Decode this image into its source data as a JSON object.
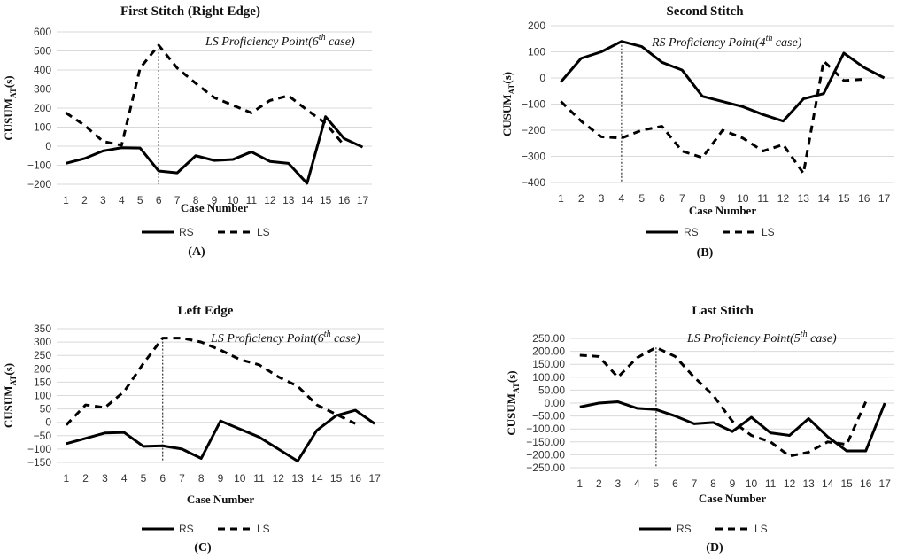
{
  "figure": {
    "panels_label": "Figure"
  },
  "chart_data": [
    {
      "type": "line",
      "title": "First Stitch (Right Edge)",
      "panel_label": "(A)",
      "xlabel": "Case Number",
      "ylabel_main": "CUSUM",
      "ylabel_sub": "AT",
      "ylabel_end": "(s)",
      "ylim": [
        -200,
        600
      ],
      "yticks": [
        -200,
        -100,
        0,
        100,
        200,
        300,
        400,
        500,
        600
      ],
      "ytick_labels": [
        "−200",
        "−100",
        "0",
        "100",
        "200",
        "300",
        "400",
        "500",
        "600"
      ],
      "categories": [
        "1",
        "2",
        "3",
        "4",
        "5",
        "6",
        "7",
        "8",
        "9",
        "10",
        "11",
        "12",
        "13",
        "14",
        "15",
        "16",
        "17"
      ],
      "series": [
        {
          "name": "RS",
          "values": [
            -90,
            -65,
            -25,
            -8,
            -10,
            -130,
            -140,
            -50,
            -75,
            -70,
            -30,
            -80,
            -90,
            -195,
            155,
            40,
            -5
          ]
        },
        {
          "name": "LS",
          "values": [
            175,
            110,
            25,
            5,
            410,
            530,
            410,
            330,
            255,
            215,
            175,
            240,
            265,
            190,
            120,
            5,
            null
          ]
        }
      ],
      "annotation": {
        "text": "LS Proficiency Point(6",
        "sup": "th",
        "tail": " case)",
        "x_case": 6
      }
    },
    {
      "type": "line",
      "title": "Second Stitch",
      "panel_label": "(B)",
      "xlabel": "Case Number",
      "ylabel_main": "CUSUM",
      "ylabel_sub": "AT",
      "ylabel_end": "(s)",
      "ylim": [
        -400,
        200
      ],
      "yticks": [
        -400,
        -300,
        -200,
        -100,
        0,
        100,
        200
      ],
      "ytick_labels": [
        "−400",
        "−300",
        "−200",
        "−100",
        "0",
        "100",
        "200"
      ],
      "categories": [
        "1",
        "2",
        "3",
        "4",
        "5",
        "6",
        "7",
        "8",
        "9",
        "10",
        "11",
        "12",
        "13",
        "14",
        "15",
        "16",
        "17"
      ],
      "series": [
        {
          "name": "RS",
          "values": [
            -15,
            75,
            100,
            140,
            120,
            60,
            30,
            -70,
            -90,
            -110,
            -140,
            -165,
            -80,
            -60,
            95,
            40,
            0
          ]
        },
        {
          "name": "LS",
          "values": [
            -90,
            -165,
            -225,
            -230,
            -200,
            -185,
            -280,
            -305,
            -200,
            -230,
            -280,
            -255,
            -365,
            65,
            -10,
            -5,
            null
          ]
        }
      ],
      "annotation": {
        "text": "RS Proficiency Point(4",
        "sup": "th",
        "tail": " case)",
        "x_case": 4
      }
    },
    {
      "type": "line",
      "title": "Left Edge",
      "panel_label": "(C)",
      "xlabel": "Case Number",
      "ylabel_main": "CUSUM",
      "ylabel_sub": "AT",
      "ylabel_end": "(s)",
      "ylim": [
        -150,
        350
      ],
      "yticks": [
        -150,
        -100,
        -50,
        0,
        50,
        100,
        150,
        200,
        250,
        300,
        350
      ],
      "ytick_labels": [
        "−150",
        "−100",
        "−50",
        "0",
        "50",
        "100",
        "150",
        "200",
        "250",
        "300",
        "350"
      ],
      "categories": [
        "1",
        "2",
        "3",
        "4",
        "5",
        "6",
        "7",
        "8",
        "9",
        "10",
        "11",
        "12",
        "13",
        "14",
        "15",
        "16",
        "17"
      ],
      "series": [
        {
          "name": "RS",
          "values": [
            -80,
            -60,
            -40,
            -38,
            -90,
            -88,
            -100,
            -135,
            5,
            -25,
            -55,
            -100,
            -145,
            -30,
            25,
            45,
            -5
          ]
        },
        {
          "name": "LS",
          "values": [
            -10,
            65,
            55,
            115,
            220,
            315,
            315,
            300,
            270,
            235,
            215,
            170,
            135,
            65,
            30,
            -5,
            null
          ]
        }
      ],
      "annotation": {
        "text": "LS Proficiency Point(6",
        "sup": "th",
        "tail": " case)",
        "x_case": 6
      }
    },
    {
      "type": "line",
      "title": "Last Stitch",
      "panel_label": "(D)",
      "xlabel": "Case Number",
      "ylabel_main": "CUSUM",
      "ylabel_sub": "AT",
      "ylabel_end": "(s)",
      "ylim": [
        -250,
        250
      ],
      "yticks": [
        -250,
        -200,
        -150,
        -100,
        -50,
        0,
        50,
        100,
        150,
        200,
        250
      ],
      "ytick_labels": [
        "−250.00",
        "−200.00",
        "−150.00",
        "−100.00",
        "−50.00",
        "0.00",
        "50.00",
        "100.00",
        "150.00",
        "200.00",
        "250.00"
      ],
      "categories": [
        "1",
        "2",
        "3",
        "4",
        "5",
        "6",
        "7",
        "8",
        "9",
        "10",
        "11",
        "12",
        "13",
        "14",
        "15",
        "16",
        "17"
      ],
      "series": [
        {
          "name": "RS",
          "values": [
            -15,
            0,
            5,
            -20,
            -25,
            -50,
            -80,
            -75,
            -110,
            -55,
            -115,
            -125,
            -60,
            -130,
            -185,
            -185,
            0
          ]
        },
        {
          "name": "LS",
          "values": [
            185,
            180,
            100,
            175,
            215,
            180,
            100,
            30,
            -70,
            -125,
            -150,
            -205,
            -190,
            -150,
            -160,
            5,
            null
          ]
        }
      ],
      "annotation": {
        "text": "LS Proficiency Point(5",
        "sup": "th",
        "tail": " case)",
        "x_case": 5
      }
    }
  ],
  "legend": {
    "rs_label": "RS",
    "ls_label": "LS"
  }
}
